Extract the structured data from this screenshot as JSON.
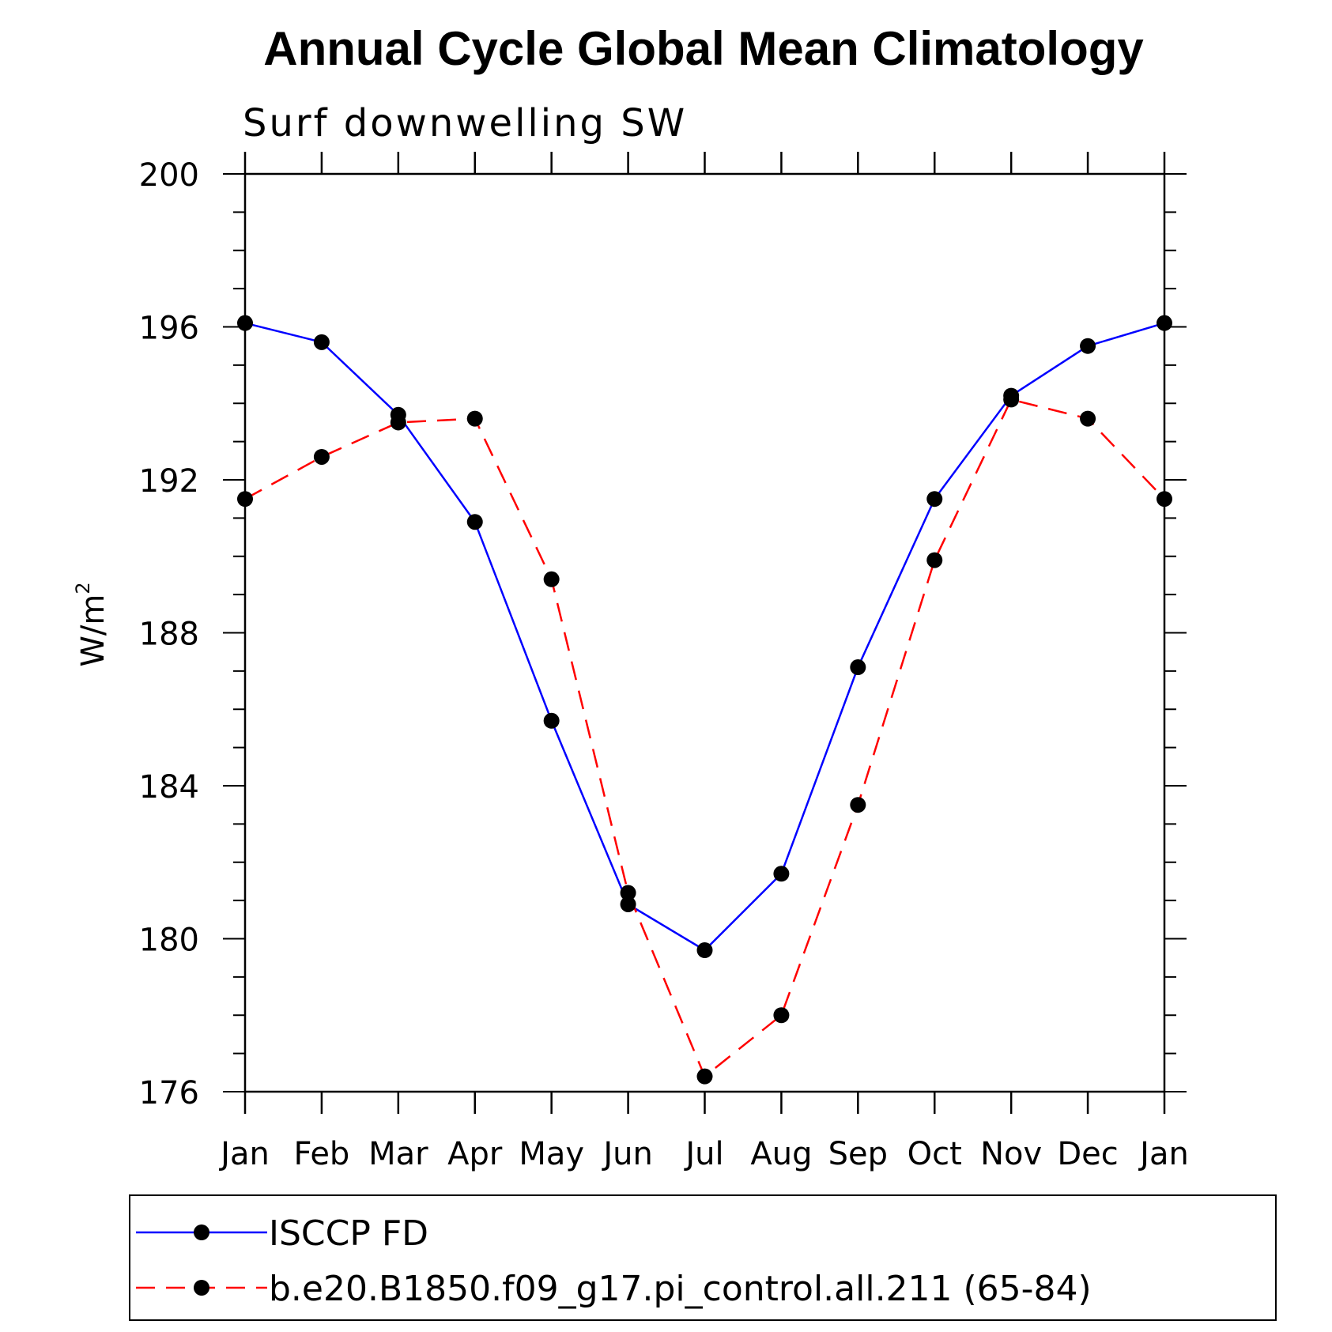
{
  "chart_data": {
    "type": "line",
    "title": "Annual Cycle Global Mean Climatology",
    "subtitle": "Surf downwelling SW",
    "ylabel": "W/m",
    "ylabel_sup": "2",
    "xlabel": "",
    "categories": [
      "Jan",
      "Feb",
      "Mar",
      "Apr",
      "May",
      "Jun",
      "Jul",
      "Aug",
      "Sep",
      "Oct",
      "Nov",
      "Dec",
      "Jan"
    ],
    "ylim": [
      176,
      200
    ],
    "yticks": [
      "200",
      "196",
      "192",
      "188",
      "184",
      "180",
      "176"
    ],
    "ytick_values": [
      200,
      196,
      192,
      188,
      184,
      180,
      176
    ],
    "grid": false,
    "legend_position": "bottom",
    "series": [
      {
        "name": "ISCCP FD",
        "color": "#0000ff",
        "dash": "solid",
        "marker": "circle",
        "values": [
          196.1,
          195.6,
          193.7,
          190.9,
          185.7,
          180.9,
          179.7,
          181.7,
          187.1,
          191.5,
          194.2,
          195.5,
          196.1
        ]
      },
      {
        "name": "b.e20.B1850.f09_g17.pi_control.all.211 (65-84)",
        "color": "#ff0000",
        "dash": "dashed",
        "marker": "circle",
        "values": [
          191.5,
          192.6,
          193.5,
          193.6,
          189.4,
          181.2,
          176.4,
          178.0,
          183.5,
          189.9,
          194.1,
          193.6,
          191.5
        ]
      }
    ]
  }
}
